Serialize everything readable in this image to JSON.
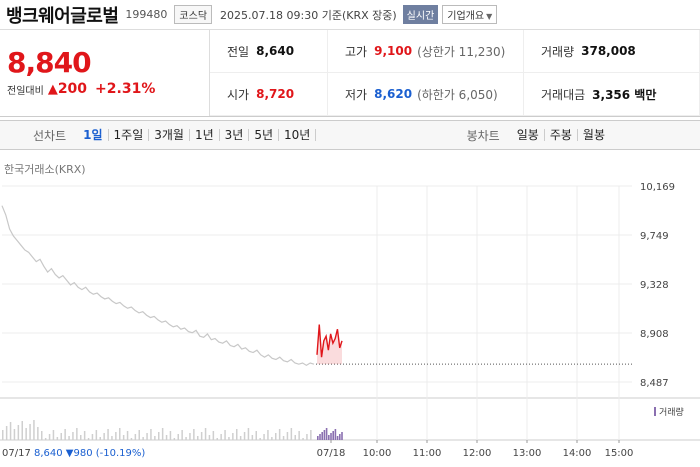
{
  "header": {
    "stock_name": "뱅크웨어글로벌",
    "stock_code": "199480",
    "market": "코스닥",
    "as_of": "2025.07.18 09:30 기준(KRX 장중)",
    "realtime_label": "실시간",
    "overview_label": "기업개요"
  },
  "quote": {
    "price": "8,840",
    "change_label": "전일대비",
    "change_arrow": "▲",
    "change_value": "200",
    "change_pct": "+2.31%",
    "prev_close_label": "전일",
    "prev_close": "8,640",
    "high_label": "고가",
    "high": "9,100",
    "upper_limit": "(상한가 11,230)",
    "volume_label": "거래량",
    "volume": "378,008",
    "open_label": "시가",
    "open": "8,720",
    "low_label": "저가",
    "low": "8,620",
    "lower_limit": "(하한가 6,050)",
    "value_label": "거래대금",
    "value": "3,356 백만"
  },
  "tabs": {
    "line_label": "선차트",
    "line_tabs": [
      "1일",
      "1주일",
      "3개월",
      "1년",
      "3년",
      "5년",
      "10년"
    ],
    "active": "1일",
    "candle_label": "봉차트",
    "candle_tabs": [
      "일봉",
      "주봉",
      "월봉"
    ]
  },
  "chart": {
    "source": "한국거래소(KRX)",
    "y_ticks": [
      "10,169",
      "9,749",
      "9,328",
      "8,908",
      "8,487"
    ],
    "x_ticks": [
      "07/18",
      "10:00",
      "11:00",
      "12:00",
      "13:00",
      "14:00",
      "15:00"
    ],
    "start_label": "07/17",
    "prev_summary": "8,640 ▼980 (-10.19%)",
    "volume_legend": "거래량",
    "colors": {
      "up": "#e0161a",
      "down": "#1a5fd0",
      "prev_line": "#c8c8c8",
      "volume": "#8a6fb0"
    }
  },
  "chart_data": {
    "type": "line",
    "ylim": [
      8487,
      10169
    ],
    "reference_price": 8640,
    "series": [
      {
        "values": [
          10000,
          9920,
          9800,
          9740,
          9700,
          9660,
          9620,
          9600,
          9560,
          9520,
          9540,
          9480,
          9430,
          9460,
          9410,
          9380,
          9400,
          9360,
          9320,
          9340,
          9300,
          9280,
          9300,
          9260,
          9240,
          9250,
          9220,
          9200,
          9210,
          9180,
          9160,
          9170,
          9140,
          9120,
          9130,
          9100,
          9080,
          9090,
          9060,
          9040,
          9050,
          9020,
          9000,
          9010,
          8980,
          8960,
          8970,
          8940,
          8950,
          8920,
          8910,
          8930,
          8880,
          8870,
          8900,
          8850,
          8860,
          8830,
          8820,
          8840,
          8800,
          8790,
          8810,
          8770,
          8780,
          8750,
          8740,
          8760,
          8720,
          8700,
          8720,
          8690,
          8680,
          8700,
          8670,
          8660,
          8680,
          8650,
          8640,
          8650,
          8630,
          8650,
          8640
        ]
      },
      {
        "values": [
          8720,
          8980,
          8700,
          8840,
          8880,
          8760,
          8900,
          8820,
          8860,
          8940,
          8780,
          8840
        ]
      }
    ]
  }
}
